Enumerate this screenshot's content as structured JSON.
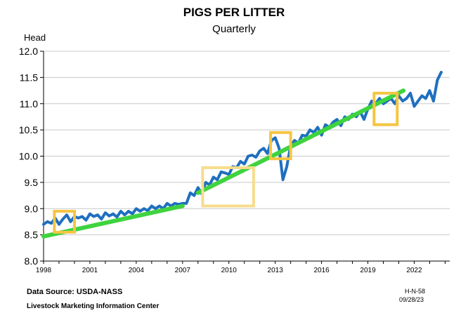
{
  "chart_data": {
    "type": "line",
    "title": "PIGS PER LITTER",
    "subtitle": "Quarterly",
    "ylabel": "Head",
    "xlabel": "",
    "ylim": [
      8.0,
      12.0
    ],
    "yticks": [
      "8.0",
      "8.5",
      "9.0",
      "9.5",
      "10.0",
      "10.5",
      "11.0",
      "11.5",
      "12.0"
    ],
    "xlim": [
      1998,
      2024.3
    ],
    "xticks": [
      "1998",
      "2001",
      "2004",
      "2007",
      "2010",
      "2013",
      "2016",
      "2019",
      "2022"
    ],
    "grid": true,
    "series": [
      {
        "color": "#1f6fbf",
        "x": [
          1998.0,
          1998.25,
          1998.5,
          1998.75,
          1999.0,
          1999.25,
          1999.5,
          1999.75,
          2000.0,
          2000.25,
          2000.5,
          2000.75,
          2001.0,
          2001.25,
          2001.5,
          2001.75,
          2002.0,
          2002.25,
          2002.5,
          2002.75,
          2003.0,
          2003.25,
          2003.5,
          2003.75,
          2004.0,
          2004.25,
          2004.5,
          2004.75,
          2005.0,
          2005.25,
          2005.5,
          2005.75,
          2006.0,
          2006.25,
          2006.5,
          2006.75,
          2007.0,
          2007.25,
          2007.5,
          2007.75,
          2008.0,
          2008.25,
          2008.5,
          2008.75,
          2009.0,
          2009.25,
          2009.5,
          2009.75,
          2010.0,
          2010.25,
          2010.5,
          2010.75,
          2011.0,
          2011.25,
          2011.5,
          2011.75,
          2012.0,
          2012.25,
          2012.5,
          2012.75,
          2013.0,
          2013.25,
          2013.5,
          2013.75,
          2014.0,
          2014.25,
          2014.5,
          2014.75,
          2015.0,
          2015.25,
          2015.5,
          2015.75,
          2016.0,
          2016.25,
          2016.5,
          2016.75,
          2017.0,
          2017.25,
          2017.5,
          2017.75,
          2018.0,
          2018.25,
          2018.5,
          2018.75,
          2019.0,
          2019.25,
          2019.5,
          2019.75,
          2020.0,
          2020.25,
          2020.5,
          2020.75,
          2021.0,
          2021.25,
          2021.5,
          2021.75,
          2022.0,
          2022.25,
          2022.5,
          2022.75,
          2023.0,
          2023.25,
          2023.5,
          2023.75
        ],
        "values": [
          8.7,
          8.75,
          8.72,
          8.82,
          8.7,
          8.8,
          8.88,
          8.75,
          8.85,
          8.82,
          8.85,
          8.78,
          8.9,
          8.85,
          8.88,
          8.8,
          8.92,
          8.86,
          8.9,
          8.84,
          8.95,
          8.88,
          8.95,
          8.9,
          9.0,
          8.95,
          9.0,
          8.96,
          9.05,
          9.0,
          9.05,
          9.0,
          9.1,
          9.05,
          9.1,
          9.08,
          9.1,
          9.1,
          9.3,
          9.25,
          9.4,
          9.28,
          9.5,
          9.45,
          9.6,
          9.55,
          9.7,
          9.68,
          9.65,
          9.8,
          9.78,
          9.9,
          9.85,
          10.0,
          10.02,
          9.98,
          10.1,
          10.15,
          10.05,
          10.3,
          10.35,
          10.15,
          9.55,
          9.8,
          10.2,
          10.3,
          10.25,
          10.4,
          10.38,
          10.5,
          10.45,
          10.55,
          10.4,
          10.6,
          10.55,
          10.65,
          10.7,
          10.58,
          10.75,
          10.7,
          10.8,
          10.75,
          10.85,
          10.7,
          10.9,
          11.05,
          11.0,
          11.1,
          11.0,
          11.05,
          11.1,
          11.0,
          11.15,
          11.05,
          11.1,
          11.2,
          10.95,
          11.05,
          11.15,
          11.1,
          11.25,
          11.05,
          11.45,
          11.6
        ]
      }
    ],
    "trendlines": [
      {
        "color": "#3fd33f",
        "x": [
          1998.0,
          2007.0
        ],
        "values": [
          8.47,
          9.05
        ]
      },
      {
        "color": "#3fd33f",
        "x": [
          2008.0,
          2021.3
        ],
        "values": [
          9.3,
          11.25
        ]
      }
    ],
    "highlight_boxes": [
      {
        "color": "#f5c542",
        "x": [
          1998.7,
          2000.0
        ],
        "values": [
          8.55,
          8.95
        ]
      },
      {
        "color": "#f7dc8c",
        "x": [
          2008.3,
          2011.6
        ],
        "values": [
          9.05,
          9.78
        ]
      },
      {
        "color": "#f5c542",
        "x": [
          2012.7,
          2014.0
        ],
        "values": [
          9.95,
          10.45
        ]
      },
      {
        "color": "#f5c542",
        "x": [
          2019.4,
          2020.9
        ],
        "values": [
          10.6,
          11.2
        ]
      }
    ]
  },
  "footer": {
    "source": "Data Source:  USDA-NASS",
    "organization": "Livestock Marketing Information Center",
    "code": "H-N-58",
    "date": "09/28/23"
  }
}
